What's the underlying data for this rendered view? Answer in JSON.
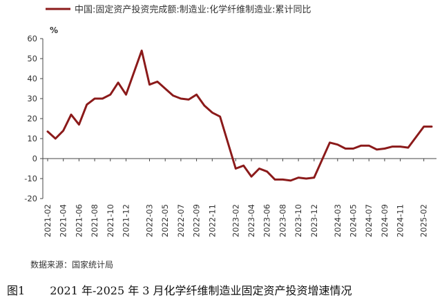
{
  "chart_data": {
    "type": "line",
    "legend": "中国:固定资产投资完成额:制造业:化学纤维制造业:累计同比",
    "legend_position": "top-left",
    "unit": "%",
    "ylim": [
      -20,
      60
    ],
    "yticks": [
      -20,
      -10,
      0,
      10,
      20,
      30,
      40,
      50,
      60
    ],
    "grid": false,
    "color": "#8b1a1a",
    "xtick_labels": [
      "2021-02",
      "2021-04",
      "2021-06",
      "2021-08",
      "2021-10",
      "2021-12",
      "2022-03",
      "2022-05",
      "2022-07",
      "2022-09",
      "2022-11",
      "2023-02",
      "2023-04",
      "2023-06",
      "2023-08",
      "2023-10",
      "2023-12",
      "2024-03",
      "2024-05",
      "2024-07",
      "2024-09",
      "2024-11",
      "2025-02"
    ],
    "series": [
      {
        "name": "中国:固定资产投资完成额:制造业:化学纤维制造业:累计同比",
        "x": [
          "2021-02",
          "2021-03",
          "2021-04",
          "2021-05",
          "2021-06",
          "2021-07",
          "2021-08",
          "2021-09",
          "2021-10",
          "2021-11",
          "2021-12",
          "2022-02",
          "2022-03",
          "2022-04",
          "2022-05",
          "2022-06",
          "2022-07",
          "2022-08",
          "2022-09",
          "2022-10",
          "2022-11",
          "2022-12",
          "2023-02",
          "2023-03",
          "2023-04",
          "2023-05",
          "2023-06",
          "2023-07",
          "2023-08",
          "2023-09",
          "2023-10",
          "2023-11",
          "2023-12",
          "2024-02",
          "2024-03",
          "2024-04",
          "2024-05",
          "2024-06",
          "2024-07",
          "2024-08",
          "2024-09",
          "2024-10",
          "2024-11",
          "2024-12",
          "2025-02",
          "2025-03"
        ],
        "values": [
          13.5,
          10,
          14,
          22,
          17,
          27,
          30,
          30,
          32,
          38,
          32,
          54,
          37,
          38.5,
          35,
          31.5,
          30,
          29.5,
          32,
          26.5,
          23,
          21,
          -5,
          -3.5,
          -9,
          -5,
          -6.5,
          -10.5,
          -10.5,
          -11,
          -9.5,
          -10,
          -9.5,
          8,
          7,
          5,
          5,
          6.5,
          6.5,
          4.5,
          5,
          6,
          6,
          5.5,
          16,
          16
        ]
      }
    ]
  },
  "source": "数据来源：国家统计局",
  "caption": {
    "figure_label": "图1",
    "text": "2021 年-2025 年 3 月化学纤维制造业固定资产投资增速情况"
  }
}
